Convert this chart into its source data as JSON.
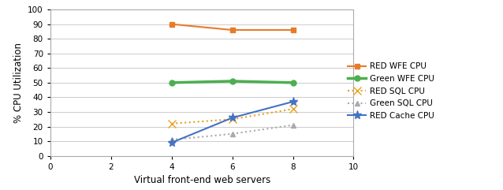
{
  "x": [
    4,
    6,
    8
  ],
  "series": [
    {
      "label": "RED WFE CPU",
      "y": [
        90,
        86,
        86
      ],
      "color": "#E87B2A",
      "linestyle": "-",
      "marker": "s",
      "markersize": 5,
      "linewidth": 1.5
    },
    {
      "label": "Green WFE CPU",
      "y": [
        50,
        51,
        50
      ],
      "color": "#4CAF50",
      "linestyle": "-",
      "marker": "o",
      "markersize": 5,
      "linewidth": 2.5
    },
    {
      "label": "RED SQL CPU",
      "y": [
        22,
        25,
        32
      ],
      "color": "#E8A020",
      "linestyle": ":",
      "marker": "x",
      "markersize": 7,
      "linewidth": 1.5
    },
    {
      "label": "Green SQL CPU",
      "y": [
        11,
        15,
        21
      ],
      "color": "#AAAAAA",
      "linestyle": ":",
      "marker": "^",
      "markersize": 5,
      "linewidth": 1.5
    },
    {
      "label": "RED Cache CPU",
      "y": [
        9,
        26,
        37
      ],
      "color": "#4472C4",
      "linestyle": "-",
      "marker": "*",
      "markersize": 8,
      "linewidth": 1.5
    }
  ],
  "xlabel": "Virtual front-end web servers",
  "ylabel": "% CPU Utilization",
  "xlim": [
    0,
    10
  ],
  "ylim": [
    0,
    100
  ],
  "xticks": [
    0,
    2,
    4,
    6,
    8,
    10
  ],
  "yticks": [
    0,
    10,
    20,
    30,
    40,
    50,
    60,
    70,
    80,
    90,
    100
  ],
  "background_color": "#FFFFFF",
  "grid_color": "#CCCCCC",
  "legend_fontsize": 7.5,
  "axis_label_fontsize": 8.5,
  "tick_fontsize": 7.5
}
